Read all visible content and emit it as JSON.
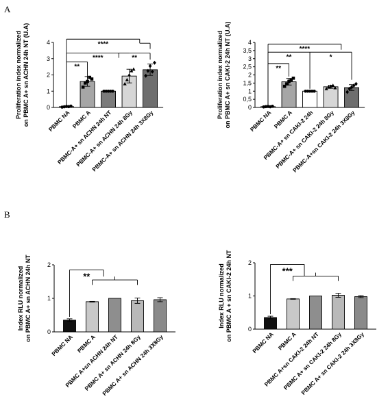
{
  "figure": {
    "panel_a_letter": "A",
    "panel_b_letter": "B"
  },
  "chart_data": [
    {
      "id": "A1",
      "type": "bar",
      "ylabel_lines": [
        "Proliferation index normalized",
        "on PBMC A+ sn ACHN 24h NT (U.A)"
      ],
      "ylim": [
        0,
        4
      ],
      "yticks": [
        0,
        1,
        2,
        3,
        4
      ],
      "categories": [
        "PBMC NA",
        "PBMC A",
        "PBMC-A+ sn ACHN 24h NT",
        "PBMC-A+ sn ACHN 24h 8Gy",
        "PBMC-A+ sn ACHN 24h 3X8Gy"
      ],
      "values": [
        0.05,
        1.6,
        1.0,
        1.93,
        2.32
      ],
      "errors": [
        0.03,
        0.3,
        0.0,
        0.42,
        0.35
      ],
      "fills": [
        "#ffffff",
        "#a6a6a6",
        "#7b7b7b",
        "#d6d6d6",
        "#6e6e6e"
      ],
      "points": [
        [
          0.02,
          0.04,
          0.06,
          0.05,
          0.08
        ],
        [
          1.25,
          1.5,
          1.6,
          1.85,
          1.75
        ],
        [
          1.0,
          1.0,
          1.0,
          1.0,
          1.0
        ],
        [
          1.45,
          1.7,
          2.0,
          2.25,
          2.35
        ],
        [
          1.95,
          2.25,
          2.55,
          2.2,
          2.75
        ]
      ],
      "markers": [
        "circle",
        "square",
        "circle",
        "triangle",
        "diamond"
      ],
      "grid": false,
      "brackets": [
        {
          "x1": 0,
          "x2": 1,
          "y": 2.8,
          "label": "**",
          "drops": [
            [
              0,
              0.12
            ],
            [
              1,
              1.8
            ]
          ]
        },
        {
          "x1": 0,
          "x2": 3,
          "y": 3.35,
          "label": "****",
          "drops": [
            [
              0,
              0.12
            ],
            [
              2.5,
              3.05
            ]
          ]
        },
        {
          "x1": 2.5,
          "x2": 4,
          "y": 3.35,
          "label": "**",
          "drops": [
            [
              4,
              2.95
            ]
          ]
        },
        {
          "x1": 0,
          "x2": 3.5,
          "y": 4.2,
          "label": "****",
          "drops": [
            [
              0,
              0.12
            ],
            [
              3.5,
              3.95
            ]
          ]
        },
        {
          "x1": 3.5,
          "x2": 4,
          "y": 3.95,
          "label": "",
          "drops": [
            [
              4,
              3.6
            ]
          ]
        }
      ]
    },
    {
      "id": "A2",
      "type": "bar",
      "ylabel_lines": [
        "Proliferation index normalized",
        "on PBMC A+ sn CAKI-2 24h NT (U.A)"
      ],
      "ylim": [
        0,
        4
      ],
      "yticks": [
        0,
        0.5,
        1,
        1.5,
        2,
        2.5,
        3,
        3.5,
        4
      ],
      "yticklabels": [
        "0",
        "0,5",
        "1",
        "1,5",
        "2",
        "2,5",
        "3",
        "3,5",
        "4"
      ],
      "categories": [
        "PBMC NA",
        "PBMC A",
        "PBMC-A+ sn CAKI-2  24h",
        "PBMC-A+ sn CAKI-2 24h 8Gy",
        "PBMC-A+sn CAKI-2 24h 3X8Gy"
      ],
      "values": [
        0.05,
        1.58,
        1.0,
        1.27,
        1.22
      ],
      "errors": [
        0.02,
        0.2,
        0.0,
        0.1,
        0.18
      ],
      "fills": [
        "#ffffff",
        "#a6a6a6",
        "#ffffff",
        "#d6d6d6",
        "#6e6e6e"
      ],
      "points": [
        [
          0.03,
          0.05,
          0.06,
          0.04,
          0.07
        ],
        [
          1.3,
          1.45,
          1.6,
          1.7,
          1.8
        ],
        [
          1.0,
          1.0,
          1.0,
          1.0,
          1.0
        ],
        [
          1.15,
          1.25,
          1.3,
          1.35,
          1.2
        ],
        [
          0.95,
          1.15,
          1.25,
          1.35,
          1.45
        ]
      ],
      "markers": [
        "circle",
        "square",
        "circle",
        "triangle",
        "diamond"
      ],
      "grid": false,
      "brackets": [
        {
          "x1": 0,
          "x2": 1,
          "y": 2.7,
          "label": "**",
          "drops": [
            [
              0,
              0.12
            ],
            [
              1,
              1.9
            ]
          ]
        },
        {
          "x1": 0,
          "x2": 2,
          "y": 3.4,
          "label": "**",
          "drops": [
            [
              0,
              0.12
            ],
            [
              2,
              1.15
            ]
          ]
        },
        {
          "x1": 2,
          "x2": 4,
          "y": 3.4,
          "label": "*",
          "drops": [
            [
              4,
              1.7
            ]
          ]
        },
        {
          "x1": 0,
          "x2": 3.5,
          "y": 3.9,
          "label": "****",
          "drops": [
            [
              0,
              0.12
            ],
            [
              3.5,
              3.55
            ]
          ]
        }
      ]
    },
    {
      "id": "B1",
      "type": "bar",
      "ylabel_lines": [
        "Index RLU normalized",
        "on PBMC A+ sn  ACHN 24h NT"
      ],
      "ylim": [
        0,
        2
      ],
      "yticks": [
        0,
        1,
        2
      ],
      "categories": [
        "PBMC NA",
        "PBMC A",
        "PBMC A+sn ACHN 24h NT",
        "PBMC A+ sn ACHN 24h 8Gy",
        "PBMC A+ sn ACHN 24h 3X8Gy"
      ],
      "values": [
        0.35,
        0.9,
        1.0,
        0.93,
        0.96
      ],
      "errors": [
        0.04,
        0.01,
        0.0,
        0.08,
        0.06
      ],
      "fills": [
        "#111111",
        "#c8c8c8",
        "#8e8e8e",
        "#b9b9b9",
        "#8a8a8a"
      ],
      "grid": false,
      "brackets": [
        {
          "x1": 0,
          "x2": 1.5,
          "y": 1.85,
          "label": "**",
          "drops": [
            [
              0,
              0.45
            ],
            [
              1.5,
              1.65
            ]
          ]
        },
        {
          "x1": 1,
          "x2": 3,
          "y": 1.55,
          "label": "",
          "drops": [
            [
              1,
              1.4
            ],
            [
              3,
              1.4
            ]
          ]
        },
        {
          "x1": 2,
          "x2": 2,
          "y": 1.65,
          "label": "",
          "drops": [
            [
              2,
              1.55
            ]
          ]
        }
      ]
    },
    {
      "id": "B2",
      "type": "bar",
      "ylabel_lines": [
        "Index RLU normalized",
        "on PBMC A + sn CAKI-2 24h NT"
      ],
      "ylim": [
        0,
        2
      ],
      "yticks": [
        0,
        1,
        2
      ],
      "categories": [
        "PBMC NA",
        "PBMC A",
        "PBMC A+sn CAKI-2 24h NT",
        "PBMC A+ sn CAKI-2 24h 8Gy",
        "PBMC A+ sn CAKI-2 24h 3X8Gy"
      ],
      "values": [
        0.35,
        0.91,
        1.0,
        1.02,
        0.98
      ],
      "errors": [
        0.04,
        0.01,
        0.0,
        0.06,
        0.03
      ],
      "fills": [
        "#111111",
        "#c8c8c8",
        "#8e8e8e",
        "#b9b9b9",
        "#8a8a8a"
      ],
      "grid": false,
      "brackets": [
        {
          "x1": 0,
          "x2": 1.5,
          "y": 1.95,
          "label": "***",
          "drops": [
            [
              0,
              0.45
            ],
            [
              1.5,
              1.6
            ]
          ]
        },
        {
          "x1": 1,
          "x2": 3,
          "y": 1.6,
          "label": "",
          "drops": [
            [
              1,
              1.45
            ],
            [
              3,
              1.45
            ]
          ]
        },
        {
          "x1": 2,
          "x2": 2,
          "y": 1.7,
          "label": "",
          "drops": [
            [
              2,
              1.6
            ]
          ]
        }
      ]
    }
  ]
}
